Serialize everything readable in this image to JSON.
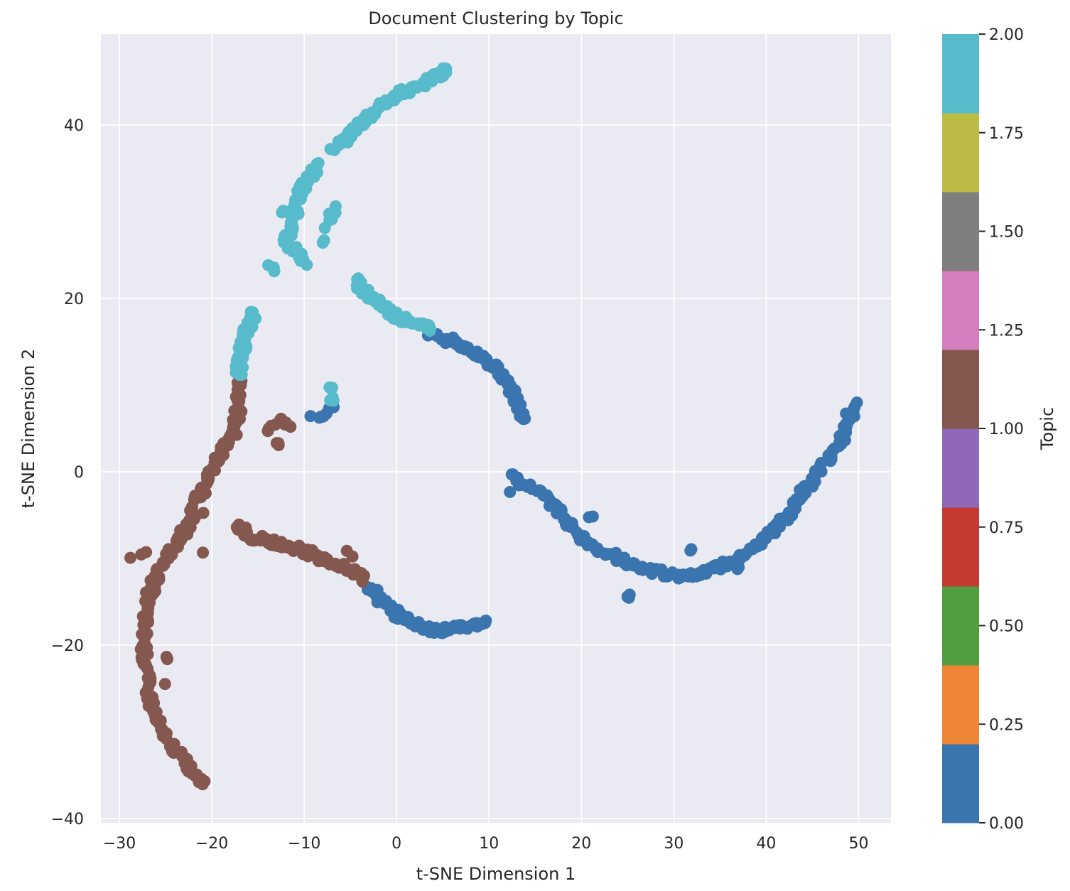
{
  "chart_data": {
    "type": "scatter",
    "title": "Document Clustering by Topic",
    "xlabel": "t-SNE Dimension 1",
    "ylabel": "t-SNE Dimension 2",
    "xlim": [
      -32,
      53.5
    ],
    "ylim": [
      -40.5,
      50.5
    ],
    "x_ticks": [
      -30,
      -20,
      -10,
      0,
      10,
      20,
      30,
      40,
      50
    ],
    "x_tick_labels": [
      "−30",
      "−20",
      "−10",
      "0",
      "10",
      "20",
      "30",
      "40",
      "50"
    ],
    "y_ticks": [
      -40,
      -20,
      0,
      20,
      40
    ],
    "y_tick_labels": [
      "−40",
      "−20",
      "0",
      "20",
      "40"
    ],
    "grid": true,
    "background": "#eaeaf2",
    "colorbar": {
      "label": "Topic",
      "range": [
        0,
        2
      ],
      "ticks": [
        0.0,
        0.25,
        0.5,
        0.75,
        1.0,
        1.25,
        1.5,
        1.75,
        2.0
      ],
      "tick_labels": [
        "0.00",
        "0.25",
        "0.50",
        "0.75",
        "1.00",
        "1.25",
        "1.50",
        "1.75",
        "2.00"
      ],
      "colors": [
        "#3b75af",
        "#ef8636",
        "#519e3e",
        "#c53a32",
        "#8d69b8",
        "#84584e",
        "#d57dbe",
        "#7f7f7f",
        "#bcbc45",
        "#58bbcc"
      ]
    },
    "series": [
      {
        "topic": 0,
        "color": "#3b75af",
        "segments": [
          {
            "points": [
              [
                3.5,
                16
              ],
              [
                5,
                15.5
              ],
              [
                6,
                15
              ],
              [
                7,
                14.5
              ],
              [
                8,
                14
              ],
              [
                9,
                13.5
              ],
              [
                10,
                12.5
              ],
              [
                11,
                11.5
              ],
              [
                12,
                10.5
              ],
              [
                12.5,
                9.5
              ],
              [
                13,
                8.5
              ],
              [
                13.5,
                7
              ],
              [
                14,
                6
              ]
            ],
            "n": 70
          },
          {
            "points": [
              [
                12.5,
                -0.5
              ],
              [
                14,
                -1.5
              ],
              [
                15.5,
                -2.5
              ],
              [
                17,
                -4
              ],
              [
                18,
                -5
              ],
              [
                19,
                -6.5
              ],
              [
                20,
                -7.5
              ],
              [
                22,
                -9
              ],
              [
                24,
                -10
              ],
              [
                26,
                -11
              ],
              [
                28,
                -11.5
              ],
              [
                30,
                -12
              ],
              [
                32,
                -11.8
              ],
              [
                34,
                -11.3
              ],
              [
                36,
                -10.5
              ],
              [
                38,
                -9.5
              ],
              [
                40,
                -7.5
              ],
              [
                42,
                -5.5
              ],
              [
                43,
                -4
              ],
              [
                44,
                -2.5
              ],
              [
                45,
                -1
              ],
              [
                46,
                0.5
              ],
              [
                47,
                2
              ],
              [
                48,
                3.5
              ],
              [
                48.5,
                5
              ],
              [
                49,
                6.5
              ],
              [
                50,
                8
              ]
            ],
            "n": 200
          },
          {
            "points": [
              [
                -3,
                -13
              ],
              [
                -2,
                -14.5
              ],
              [
                -1,
                -15.5
              ],
              [
                0,
                -16.5
              ],
              [
                1,
                -17
              ],
              [
                2,
                -17.5
              ],
              [
                4,
                -18.3
              ],
              [
                6,
                -18.2
              ],
              [
                8,
                -17.8
              ],
              [
                9.5,
                -17.2
              ]
            ],
            "n": 75
          },
          {
            "points": [
              [
                -9,
                6.2
              ],
              [
                -8,
                6.6
              ],
              [
                -7,
                7.1
              ]
            ],
            "n": 8
          },
          {
            "points": [
              [
                12.5,
                -2.5
              ]
            ],
            "n": 1
          },
          {
            "points": [
              [
                21,
                -5
              ]
            ],
            "n": 2
          },
          {
            "points": [
              [
                25,
                -14.3
              ]
            ],
            "n": 3
          },
          {
            "points": [
              [
                32,
                -9
              ]
            ],
            "n": 2
          },
          {
            "points": [
              [
                37,
                -11
              ]
            ],
            "n": 2
          }
        ]
      },
      {
        "topic": 1,
        "color": "#84584e",
        "segments": [
          {
            "points": [
              [
                -17,
                10.5
              ],
              [
                -17,
                8
              ],
              [
                -17.5,
                5
              ],
              [
                -18.5,
                3
              ],
              [
                -19.5,
                1
              ],
              [
                -20.5,
                -1
              ],
              [
                -21.5,
                -3
              ],
              [
                -22.5,
                -6
              ],
              [
                -23.5,
                -8
              ],
              [
                -25,
                -10
              ],
              [
                -26,
                -12
              ],
              [
                -27,
                -15
              ],
              [
                -27.3,
                -18
              ],
              [
                -27.3,
                -21
              ],
              [
                -27,
                -24
              ],
              [
                -26.5,
                -27
              ],
              [
                -25.5,
                -30
              ],
              [
                -24,
                -32
              ],
              [
                -22.5,
                -34
              ],
              [
                -21.5,
                -35.5
              ],
              [
                -20.5,
                -36
              ]
            ],
            "n": 190
          },
          {
            "points": [
              [
                -17,
                -6
              ],
              [
                -16,
                -7.5
              ],
              [
                -14,
                -8
              ],
              [
                -12,
                -8.5
              ],
              [
                -10,
                -9
              ],
              [
                -8,
                -10
              ],
              [
                -6,
                -11
              ],
              [
                -4.5,
                -11.5
              ],
              [
                -3.5,
                -12.5
              ]
            ],
            "n": 85
          },
          {
            "points": [
              [
                -14,
                5
              ],
              [
                -13,
                5.7
              ],
              [
                -12.5,
                6
              ],
              [
                -11.5,
                5.3
              ]
            ],
            "n": 10
          },
          {
            "points": [
              [
                -13,
                3.5
              ],
              [
                -12.5,
                3
              ]
            ],
            "n": 3
          },
          {
            "points": [
              [
                -28.5,
                -10
              ],
              [
                -27.5,
                -9
              ]
            ],
            "n": 3
          },
          {
            "points": [
              [
                -25,
                -21.5
              ]
            ],
            "n": 2
          },
          {
            "points": [
              [
                -25,
                -24.5
              ]
            ],
            "n": 1
          },
          {
            "points": [
              [
                -21,
                -4.5
              ],
              [
                -21,
                -9
              ]
            ],
            "n": 2
          },
          {
            "points": [
              [
                -5.5,
                -9
              ],
              [
                -4.5,
                -9.5
              ]
            ],
            "n": 2
          }
        ]
      },
      {
        "topic": 2,
        "color": "#58bbcc",
        "segments": [
          {
            "points": [
              [
                5.5,
                46.3
              ],
              [
                4,
                45.5
              ],
              [
                2,
                44.5
              ],
              [
                0,
                43.5
              ],
              [
                -2,
                42
              ],
              [
                -4,
                40
              ],
              [
                -6,
                38
              ],
              [
                -7,
                37.5
              ]
            ],
            "n": 85
          },
          {
            "points": [
              [
                -8.5,
                35.5
              ],
              [
                -9.5,
                34
              ],
              [
                -10.5,
                32
              ],
              [
                -11,
                30
              ],
              [
                -11.5,
                28
              ],
              [
                -12,
                26.5
              ],
              [
                -10.5,
                25
              ],
              [
                -10,
                24
              ]
            ],
            "n": 60
          },
          {
            "points": [
              [
                -4.5,
                22
              ],
              [
                -3.5,
                21
              ],
              [
                -2,
                19.5
              ],
              [
                0,
                18
              ],
              [
                2,
                17
              ],
              [
                4,
                16.5
              ]
            ],
            "n": 50
          },
          {
            "points": [
              [
                -17,
                11
              ],
              [
                -17,
                13
              ],
              [
                -16.5,
                15
              ],
              [
                -16,
                17
              ],
              [
                -15.5,
                18.5
              ]
            ],
            "n": 35
          },
          {
            "points": [
              [
                -7.5,
                28.5
              ],
              [
                -6.5,
                30.5
              ]
            ],
            "n": 6
          },
          {
            "points": [
              [
                -13.5,
                23.5
              ],
              [
                -13.5,
                24
              ]
            ],
            "n": 3
          },
          {
            "points": [
              [
                -12.5,
                30
              ]
            ],
            "n": 2
          },
          {
            "points": [
              [
                -8,
                26.5
              ]
            ],
            "n": 2
          },
          {
            "points": [
              [
                -7,
                8
              ],
              [
                -7,
                10
              ]
            ],
            "n": 5
          }
        ]
      }
    ]
  }
}
